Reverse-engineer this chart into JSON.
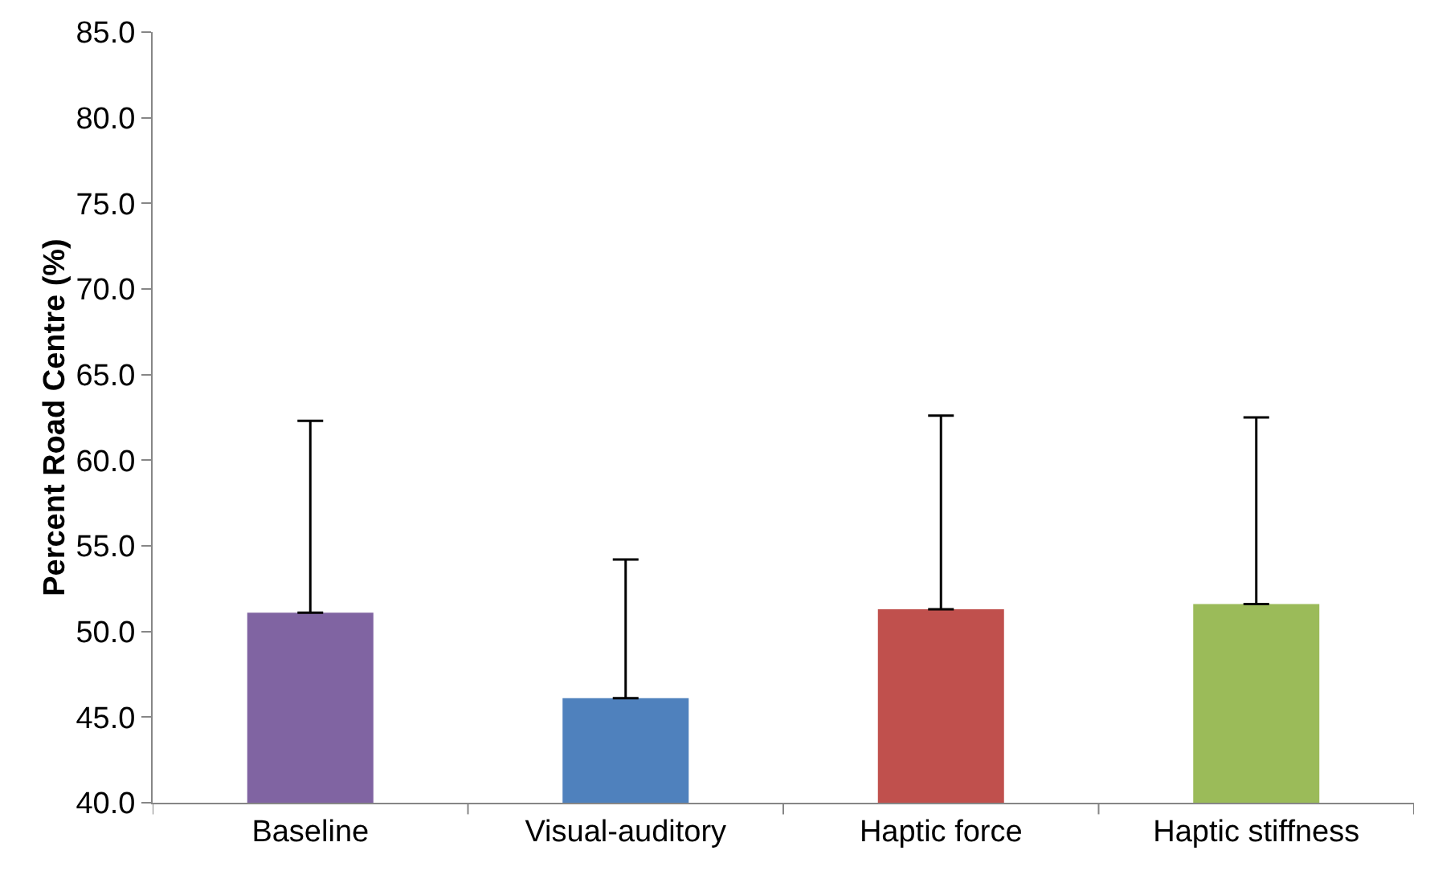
{
  "chart_data": {
    "type": "bar",
    "ylabel": "Percent Road Centre (%)",
    "categories": [
      "Baseline",
      "Visual-auditory",
      "Haptic force",
      "Haptic stiffness"
    ],
    "values": [
      51.1,
      46.1,
      51.3,
      51.6
    ],
    "colors": [
      "#8064a2",
      "#4f81bd",
      "#c0504d",
      "#9bbb59"
    ],
    "errors": [
      [
        51.1,
        62.3
      ],
      [
        46.1,
        54.2
      ],
      [
        51.3,
        62.6
      ],
      [
        51.6,
        62.5
      ]
    ],
    "ylim": [
      40,
      85
    ],
    "yticks": [
      {
        "value": 40,
        "label": "40.0"
      },
      {
        "value": 45,
        "label": "45.0"
      },
      {
        "value": 50,
        "label": "50.0"
      },
      {
        "value": 55,
        "label": "55.0"
      },
      {
        "value": 60,
        "label": "60.0"
      },
      {
        "value": 65,
        "label": "65.0"
      },
      {
        "value": 70,
        "label": "70.0"
      },
      {
        "value": 75,
        "label": "75.0"
      },
      {
        "value": 80,
        "label": "80.0"
      },
      {
        "value": 85,
        "label": "85.0"
      }
    ],
    "grid": false
  }
}
